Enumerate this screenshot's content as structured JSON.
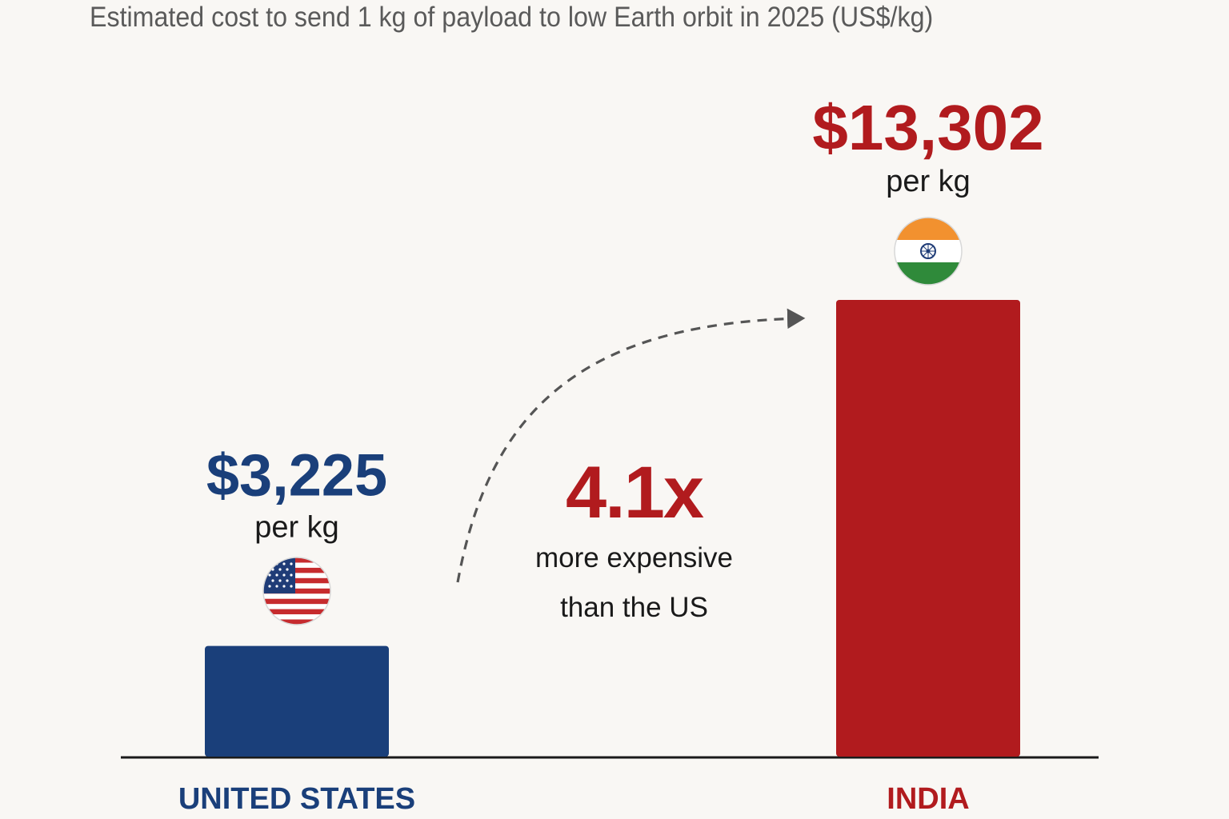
{
  "chart_data": {
    "type": "bar",
    "title": "Estimated cost to send 1 kg of payload to low Earth orbit in 2025 (US$/kg)",
    "xlabel": "",
    "ylabel": "",
    "categories": [
      "UNITED STATES",
      "INDIA"
    ],
    "values": [
      3225,
      13302
    ],
    "value_labels": [
      "$3,225",
      "$13,302"
    ],
    "unit_label": "per kg",
    "colors": [
      "#1a3f7a",
      "#b11b1e"
    ],
    "flags": [
      "us-flag-icon",
      "india-flag-icon"
    ],
    "ylim": [
      0,
      13302
    ],
    "grid": false,
    "legend": "none",
    "annotation": {
      "ratio": "4.1x",
      "line1": "more expensive",
      "line2": "than the US"
    }
  }
}
